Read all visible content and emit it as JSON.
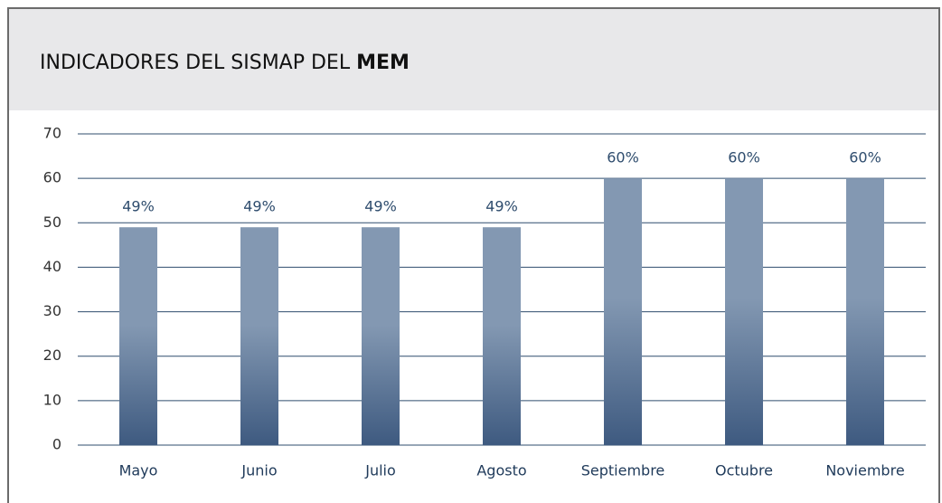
{
  "chart_data": {
    "type": "bar",
    "title": "INDICADORES DEL SISMAP DEL",
    "title_bold": "MEM",
    "categories": [
      "Mayo",
      "Junio",
      "Julio",
      "Agosto",
      "Septiembre",
      "Octubre",
      "Noviembre"
    ],
    "values": [
      49,
      49,
      49,
      49,
      60,
      60,
      60
    ],
    "value_labels": [
      "49%",
      "49%",
      "49%",
      "49%",
      "60%",
      "60%",
      "60%"
    ],
    "color": [
      "#8398b2",
      "#3e5a80"
    ],
    "ylim": [
      0,
      70
    ],
    "yticks": [
      0,
      10,
      20,
      30,
      40,
      50,
      60,
      70
    ],
    "grid": true
  }
}
